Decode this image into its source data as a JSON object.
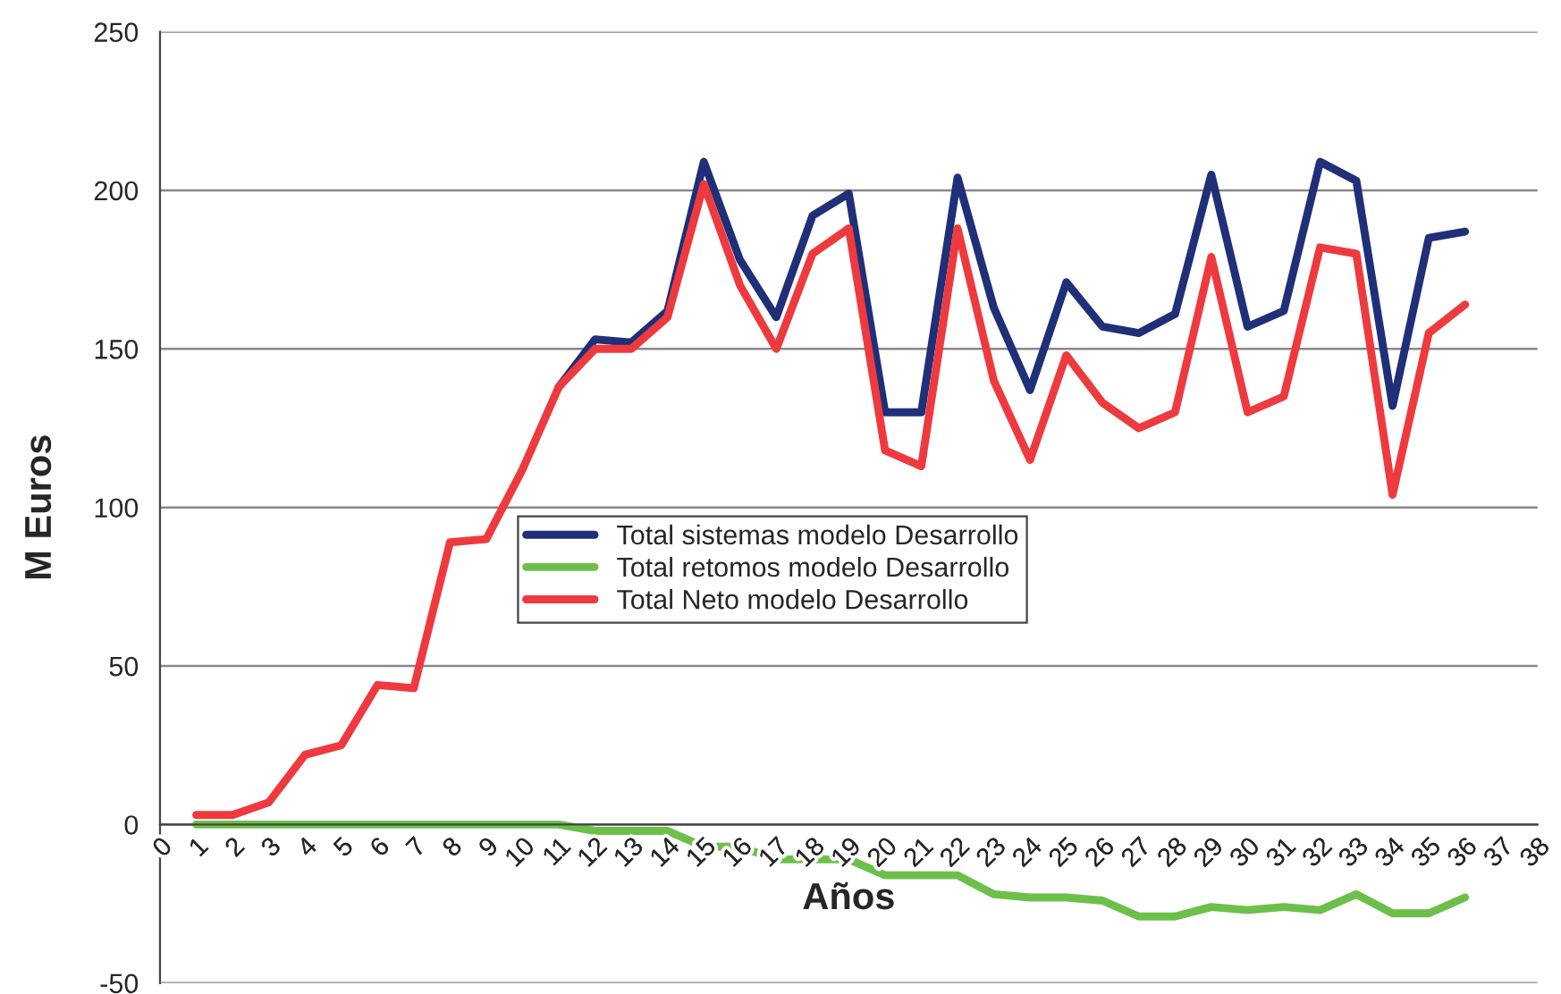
{
  "chart_data": {
    "type": "line",
    "xlabel": "Años",
    "ylabel": "M Euros",
    "x": [
      1,
      2,
      3,
      4,
      5,
      6,
      7,
      8,
      9,
      10,
      11,
      12,
      13,
      14,
      15,
      16,
      17,
      18,
      19,
      20,
      21,
      22,
      23,
      24,
      25,
      26,
      27,
      28,
      29,
      30,
      31,
      32,
      33,
      34,
      35,
      36
    ],
    "series": [
      {
        "name": "Total sistemas modelo Desarrollo",
        "color": "#1f2f78",
        "values": [
          null,
          null,
          null,
          null,
          null,
          null,
          null,
          null,
          null,
          null,
          138,
          153,
          152,
          162,
          209,
          178,
          160,
          192,
          199,
          130,
          130,
          204,
          163,
          137,
          171,
          157,
          155,
          161,
          205,
          157,
          162,
          209,
          203,
          132,
          185,
          187
        ]
      },
      {
        "name": "Total retomos modelo Desarrollo",
        "color": "#6cc04a",
        "values": [
          0,
          0,
          0,
          0,
          0,
          0,
          0,
          0,
          0,
          0,
          0,
          -2,
          -2,
          -2,
          -7,
          -7,
          -11,
          -11,
          -11,
          -16,
          -16,
          -16,
          -22,
          -23,
          -23,
          -24,
          -29,
          -29,
          -26,
          -27,
          -26,
          -27,
          -22,
          -28,
          -28,
          -23
        ]
      },
      {
        "name": "Total Neto modelo Desarrollo",
        "color": "#ee3a3e",
        "values": [
          3,
          3,
          7,
          22,
          25,
          44,
          43,
          89,
          90,
          112,
          138,
          150,
          150,
          160,
          202,
          170,
          150,
          180,
          188,
          118,
          113,
          188,
          140,
          115,
          148,
          133,
          125,
          130,
          179,
          130,
          135,
          182,
          180,
          104,
          155,
          164
        ]
      }
    ],
    "xlim": [
      0,
      38
    ],
    "xticks": [
      0,
      1,
      2,
      3,
      4,
      5,
      6,
      7,
      8,
      9,
      10,
      11,
      12,
      13,
      14,
      15,
      16,
      17,
      18,
      19,
      20,
      21,
      22,
      23,
      24,
      25,
      26,
      27,
      28,
      29,
      30,
      31,
      32,
      33,
      34,
      35,
      36,
      37,
      38
    ],
    "ylim": [
      -50,
      250
    ],
    "yticks": [
      -50,
      0,
      50,
      100,
      150,
      200,
      250
    ],
    "grid": "y",
    "legend": "center",
    "marker": "none",
    "line_style": "solid"
  }
}
